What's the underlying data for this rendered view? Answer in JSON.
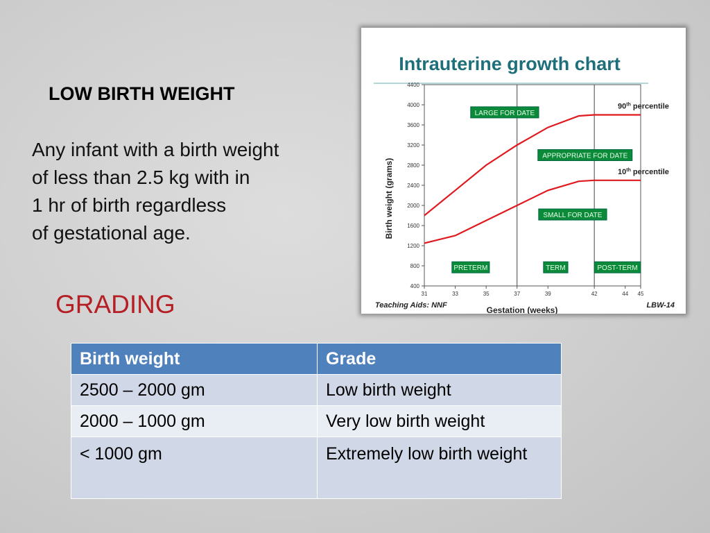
{
  "slide": {
    "heading": "LOW BIRTH WEIGHT",
    "definition_lines": [
      "Any infant with a birth weight",
      " of less than 2.5 kg with in",
      " 1 hr of birth regardless",
      " of gestational age."
    ],
    "grading_label": "GRADING"
  },
  "colors": {
    "grading_red": "#b51f24",
    "table_header": "#4f81bd",
    "table_row_dark": "#d0d8e8",
    "table_row_light": "#e9edf4",
    "chart_title": "#1f6f7a",
    "chart_curve": "#e0191f",
    "chart_label_box": "#0b8a3a"
  },
  "table": {
    "headers": [
      "Birth weight",
      "Grade"
    ],
    "rows": [
      [
        "2500 – 2000 gm",
        "Low birth weight"
      ],
      [
        "2000 – 1000 gm",
        "Very low birth weight"
      ],
      [
        "< 1000 gm",
        "Extremely low birth weight"
      ]
    ]
  },
  "chart_data": {
    "type": "line",
    "title": "Intrauterine growth chart",
    "xlabel": "Gestation (weeks)",
    "ylabel": "Birth weight (grams)",
    "xlim": [
      31,
      45
    ],
    "ylim": [
      400,
      4400
    ],
    "x_ticks": [
      31,
      33,
      35,
      37,
      39,
      42,
      44,
      45
    ],
    "y_ticks": [
      400,
      800,
      1200,
      1600,
      2000,
      2400,
      2800,
      3200,
      3600,
      4000,
      4400
    ],
    "period_dividers": [
      37,
      42
    ],
    "series": [
      {
        "name": "90th percentile",
        "label_main": "90",
        "label_sup": "th",
        "label_rest": " percentile",
        "points": [
          [
            31,
            1800
          ],
          [
            33,
            2300
          ],
          [
            35,
            2800
          ],
          [
            37,
            3200
          ],
          [
            39,
            3550
          ],
          [
            41,
            3780
          ],
          [
            42,
            3800
          ],
          [
            45,
            3800
          ]
        ]
      },
      {
        "name": "10th percentile",
        "label_main": "10",
        "label_sup": "th",
        "label_rest": " percentile",
        "points": [
          [
            31,
            1250
          ],
          [
            33,
            1400
          ],
          [
            35,
            1700
          ],
          [
            37,
            2000
          ],
          [
            39,
            2300
          ],
          [
            41,
            2480
          ],
          [
            42,
            2500
          ],
          [
            45,
            2500
          ]
        ]
      }
    ],
    "annotations": [
      {
        "text": "LARGE FOR DATE",
        "x": 36.2,
        "y": 3850
      },
      {
        "text": "APPROPRIATE FOR DATE",
        "x": 41.4,
        "y": 3000
      },
      {
        "text": "SMALL FOR DATE",
        "x": 40.6,
        "y": 1820
      },
      {
        "text": "PRETERM",
        "x": 34,
        "y": 770
      },
      {
        "text": "TERM",
        "x": 39.5,
        "y": 770
      },
      {
        "text": "POST-TERM",
        "x": 43.5,
        "y": 770
      }
    ],
    "footer_left": "Teaching Aids: NNF",
    "footer_right": "LBW-14"
  }
}
